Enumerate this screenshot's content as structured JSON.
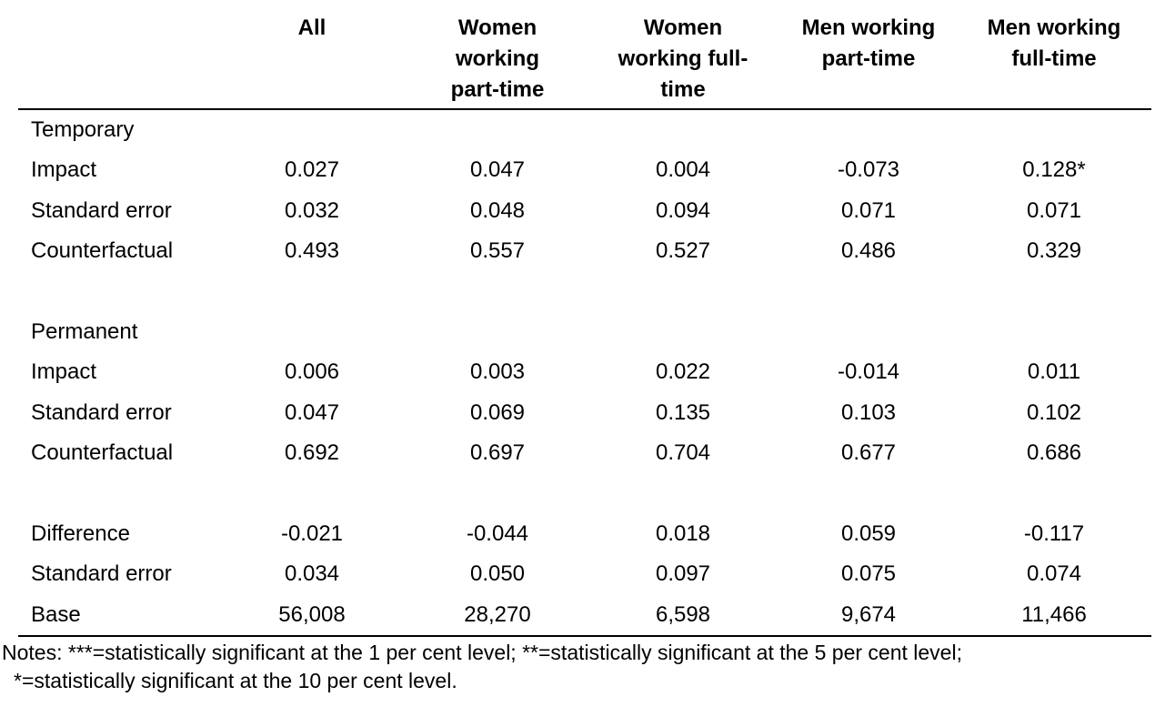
{
  "columns": [
    "All",
    "Women working part-time",
    "Women working full-time",
    "Men working part-time",
    "Men working full-time"
  ],
  "column_lines": [
    [
      "All"
    ],
    [
      "Women",
      "working",
      "part-time"
    ],
    [
      "Women",
      "working full-",
      "time"
    ],
    [
      "Men working",
      "part-time"
    ],
    [
      "Men working",
      "full-time"
    ]
  ],
  "sections": [
    {
      "title": "Temporary",
      "rows": [
        {
          "label": "Impact",
          "values": [
            "0.027",
            "0.047",
            "0.004",
            "-0.073",
            "0.128*"
          ]
        },
        {
          "label": "Standard error",
          "values": [
            "0.032",
            "0.048",
            "0.094",
            "0.071",
            "0.071"
          ]
        },
        {
          "label": "Counterfactual",
          "values": [
            "0.493",
            "0.557",
            "0.527",
            "0.486",
            "0.329"
          ]
        }
      ]
    },
    {
      "title": "Permanent",
      "rows": [
        {
          "label": "Impact",
          "values": [
            "0.006",
            "0.003",
            "0.022",
            "-0.014",
            "0.011"
          ]
        },
        {
          "label": "Standard error",
          "values": [
            "0.047",
            "0.069",
            "0.135",
            "0.103",
            "0.102"
          ]
        },
        {
          "label": "Counterfactual",
          "values": [
            "0.692",
            "0.697",
            "0.704",
            "0.677",
            "0.686"
          ]
        }
      ]
    },
    {
      "title": "",
      "rows": [
        {
          "label": "Difference",
          "values": [
            "-0.021",
            "-0.044",
            "0.018",
            "0.059",
            "-0.117"
          ]
        },
        {
          "label": "Standard error",
          "values": [
            "0.034",
            "0.050",
            "0.097",
            "0.075",
            "0.074"
          ]
        },
        {
          "label": "Base",
          "values": [
            "56,008",
            "28,270",
            "6,598",
            "9,674",
            "11,466"
          ]
        }
      ]
    }
  ],
  "notes": {
    "line1": "Notes: ***=statistically significant at the 1 per cent level; **=statistically significant at the 5 per cent level;",
    "line2": "*=statistically significant at the 10 per cent level."
  }
}
